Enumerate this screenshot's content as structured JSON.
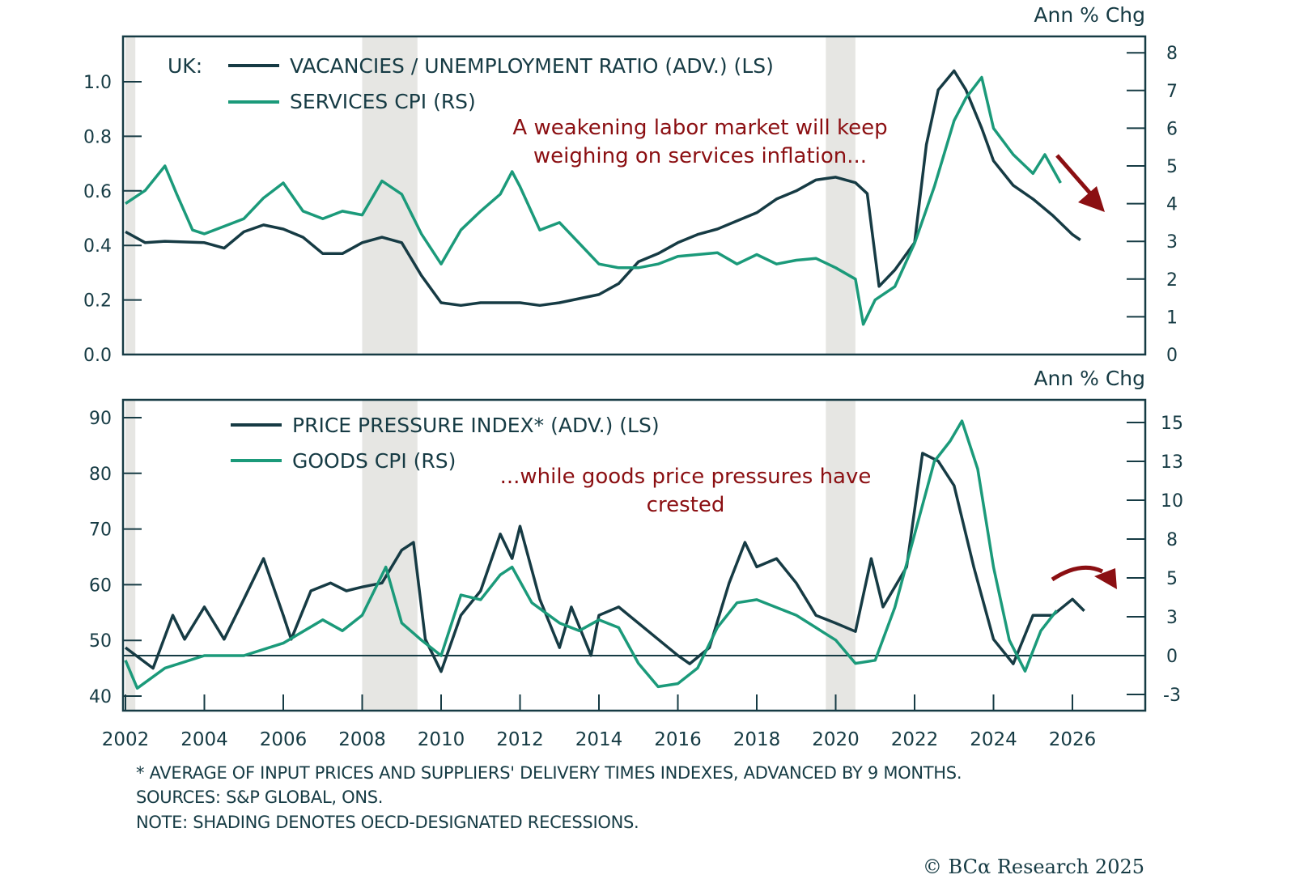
{
  "chart_data": [
    {
      "type": "line",
      "panel": "top",
      "prefix": "UK:",
      "right_axis_title": "Ann % Chg",
      "xlim": [
        2002,
        2027.3
      ],
      "ylim_left": [
        0,
        1.1
      ],
      "ylim_right": [
        0,
        8.4
      ],
      "yticks_left": [
        0.0,
        0.2,
        0.4,
        0.6,
        0.8,
        1.0
      ],
      "ytick_labels_left": [
        "0.0",
        "0.2",
        "0.4",
        "0.6",
        "0.8",
        "1.0"
      ],
      "yticks_right": [
        0,
        1,
        2,
        3,
        4,
        5,
        6,
        7,
        8
      ],
      "ytick_labels_right": [
        "0",
        "1",
        "2",
        "3",
        "4",
        "5",
        "6",
        "7",
        "8"
      ],
      "annotation": [
        "A weakening labor market will keep",
        "weighing on services inflation..."
      ],
      "annotation_arrow": "down-right",
      "series": [
        {
          "name": "VACANCIES / UNEMPLOYMENT RATIO (ADV.) (LS)",
          "axis": "left",
          "color": "#163b44",
          "x": [
            2002.0,
            2002.5,
            2003.0,
            2004.0,
            2004.5,
            2005.0,
            2005.5,
            2006.0,
            2006.5,
            2007.0,
            2007.5,
            2008.0,
            2008.5,
            2009.0,
            2009.5,
            2010.0,
            2010.5,
            2011.0,
            2012.0,
            2012.5,
            2013.0,
            2014.0,
            2014.5,
            2015.0,
            2015.5,
            2016.0,
            2016.5,
            2017.0,
            2017.5,
            2018.0,
            2018.5,
            2019.0,
            2019.5,
            2020.0,
            2020.5,
            2020.8,
            2021.1,
            2021.5,
            2022.0,
            2022.3,
            2022.6,
            2023.0,
            2023.3,
            2023.7,
            2024.0,
            2024.5,
            2025.0,
            2025.5,
            2026.0,
            2026.2
          ],
          "values": [
            0.45,
            0.41,
            0.415,
            0.41,
            0.39,
            0.45,
            0.475,
            0.46,
            0.43,
            0.37,
            0.37,
            0.41,
            0.43,
            0.41,
            0.29,
            0.19,
            0.18,
            0.19,
            0.19,
            0.18,
            0.19,
            0.22,
            0.26,
            0.34,
            0.37,
            0.41,
            0.44,
            0.46,
            0.49,
            0.52,
            0.57,
            0.6,
            0.64,
            0.65,
            0.63,
            0.59,
            0.25,
            0.31,
            0.41,
            0.77,
            0.97,
            1.04,
            0.97,
            0.83,
            0.71,
            0.62,
            0.57,
            0.51,
            0.44,
            0.42
          ]
        },
        {
          "name": "SERVICES CPI (RS)",
          "axis": "right",
          "color": "#1b9a7a",
          "x": [
            2002.0,
            2002.5,
            2003.0,
            2003.3,
            2003.7,
            2004.0,
            2004.5,
            2005.0,
            2005.5,
            2006.0,
            2006.5,
            2007.0,
            2007.5,
            2008.0,
            2008.5,
            2009.0,
            2009.5,
            2010.0,
            2010.5,
            2011.0,
            2011.5,
            2011.8,
            2012.0,
            2012.5,
            2013.0,
            2013.5,
            2014.0,
            2014.5,
            2015.0,
            2015.5,
            2016.0,
            2016.5,
            2017.0,
            2017.5,
            2018.0,
            2018.5,
            2019.0,
            2019.5,
            2020.0,
            2020.5,
            2020.7,
            2021.0,
            2021.5,
            2022.0,
            2022.5,
            2023.0,
            2023.3,
            2023.7,
            2024.0,
            2024.5,
            2025.0,
            2025.3,
            2025.7
          ],
          "values": [
            4.0,
            4.35,
            5.0,
            4.25,
            3.3,
            3.2,
            3.4,
            3.6,
            4.15,
            4.55,
            3.8,
            3.6,
            3.8,
            3.7,
            4.6,
            4.25,
            3.2,
            2.4,
            3.3,
            3.8,
            4.25,
            4.85,
            4.45,
            3.3,
            3.5,
            2.95,
            2.4,
            2.3,
            2.3,
            2.4,
            2.6,
            2.65,
            2.7,
            2.4,
            2.65,
            2.4,
            2.5,
            2.55,
            2.3,
            2.0,
            0.8,
            1.45,
            1.8,
            2.95,
            4.45,
            6.2,
            6.8,
            7.35,
            6.0,
            5.3,
            4.8,
            5.3,
            4.55
          ]
        }
      ]
    },
    {
      "type": "line",
      "panel": "bottom",
      "right_axis_title": "Ann % Chg",
      "xlim": [
        2002,
        2027.3
      ],
      "ylim_left": [
        38,
        93
      ],
      "ylim_right": [
        -3.9,
        16.1
      ],
      "yticks_left": [
        40,
        50,
        60,
        70,
        80,
        90
      ],
      "ytick_labels_left": [
        "40",
        "50",
        "60",
        "70",
        "80",
        "90"
      ],
      "yticks_right": [
        -2.5,
        0,
        2.5,
        5,
        7.5,
        10,
        12.5,
        15
      ],
      "ytick_labels_right": [
        "-3",
        "0",
        "3",
        "5",
        "8",
        "10",
        "13",
        "15"
      ],
      "zero_line_right": 0,
      "annotation": [
        "...while goods price pressures have",
        "crested"
      ],
      "annotation_arrow": "curved-down-right",
      "series": [
        {
          "name": "PRICE PRESSURE INDEX* (ADV.) (LS)",
          "axis": "left",
          "color": "#163b44",
          "x": [
            2002.0,
            2002.7,
            2003.2,
            2003.5,
            2004.0,
            2004.5,
            2005.0,
            2005.5,
            2006.0,
            2006.2,
            2006.7,
            2007.2,
            2007.6,
            2008.0,
            2008.5,
            2009.0,
            2009.3,
            2009.6,
            2010.0,
            2010.5,
            2011.0,
            2011.5,
            2011.8,
            2012.0,
            2012.5,
            2013.0,
            2013.3,
            2013.8,
            2014.0,
            2014.5,
            2015.0,
            2015.5,
            2016.0,
            2016.3,
            2016.8,
            2017.3,
            2017.7,
            2018.0,
            2018.5,
            2019.0,
            2019.5,
            2020.0,
            2020.5,
            2020.9,
            2021.2,
            2021.8,
            2022.2,
            2022.6,
            2023.0,
            2023.5,
            2024.0,
            2024.5,
            2025.0,
            2025.5,
            2026.0,
            2026.3
          ],
          "values": [
            48.7,
            45.0,
            54.5,
            50.2,
            56.0,
            50.2,
            57.4,
            64.7,
            54.5,
            50.2,
            58.9,
            60.3,
            58.9,
            59.6,
            60.3,
            66.2,
            67.6,
            50.2,
            44.4,
            54.5,
            58.9,
            69.1,
            64.7,
            70.5,
            57.4,
            48.7,
            56.0,
            47.3,
            54.5,
            56.0,
            53.1,
            50.2,
            47.3,
            45.8,
            48.7,
            60.3,
            67.6,
            63.2,
            64.7,
            60.3,
            54.5,
            53.1,
            51.6,
            64.7,
            56.0,
            63.2,
            83.6,
            82.2,
            77.8,
            63.2,
            50.2,
            45.8,
            54.5,
            54.5,
            57.4,
            55.3
          ]
        },
        {
          "name": "GOODS CPI (RS)",
          "axis": "right",
          "color": "#1b9a7a",
          "x": [
            2002.0,
            2002.3,
            2003.0,
            2004.0,
            2005.0,
            2006.0,
            2007.0,
            2007.5,
            2008.0,
            2008.6,
            2009.0,
            2009.5,
            2010.0,
            2010.5,
            2011.0,
            2011.5,
            2011.8,
            2012.3,
            2013.0,
            2013.5,
            2014.0,
            2014.5,
            2015.0,
            2015.5,
            2016.0,
            2016.5,
            2017.0,
            2017.5,
            2018.0,
            2018.5,
            2019.0,
            2019.5,
            2020.0,
            2020.5,
            2021.0,
            2021.5,
            2022.0,
            2022.5,
            2022.9,
            2023.2,
            2023.6,
            2024.0,
            2024.4,
            2024.8,
            2025.2,
            2025.6
          ],
          "values": [
            -0.3,
            -2.1,
            -0.8,
            0.0,
            0.0,
            0.8,
            2.3,
            1.6,
            2.6,
            5.7,
            2.1,
            1.0,
            0.0,
            3.9,
            3.6,
            5.2,
            5.7,
            3.4,
            2.1,
            1.6,
            2.3,
            1.8,
            -0.5,
            -2.0,
            -1.8,
            -0.8,
            1.8,
            3.4,
            3.6,
            3.1,
            2.6,
            1.8,
            1.0,
            -0.5,
            -0.3,
            3.1,
            7.8,
            12.5,
            13.8,
            15.1,
            12.0,
            5.7,
            1.0,
            -1.0,
            1.6,
            2.9
          ]
        }
      ]
    }
  ],
  "recessions": [
    [
      2002.0,
      2002.25
    ],
    [
      2008.0,
      2009.4
    ],
    [
      2019.75,
      2020.5
    ]
  ],
  "xticks": [
    2002,
    2004,
    2006,
    2008,
    2010,
    2012,
    2014,
    2016,
    2018,
    2020,
    2022,
    2024,
    2026
  ],
  "xtick_labels": [
    "2002",
    "2004",
    "2006",
    "2008",
    "2010",
    "2012",
    "2014",
    "2016",
    "2018",
    "2020",
    "2022",
    "2024",
    "2026"
  ],
  "footnotes": {
    "asterisk": "* AVERAGE OF INPUT PRICES AND SUPPLIERS' DELIVERY TIMES INDEXES, ADVANCED BY 9 MONTHS.",
    "sources": "SOURCES: S&P GLOBAL, ONS.",
    "note": "NOTE: SHADING DENOTES OECD-DESIGNATED RECESSIONS."
  },
  "copyright": "© BCα Research 2025",
  "colors": {
    "dark": "#163b44",
    "green": "#1b9a7a",
    "annotation": "#8b0f12",
    "shading": "#e6e6e3"
  }
}
